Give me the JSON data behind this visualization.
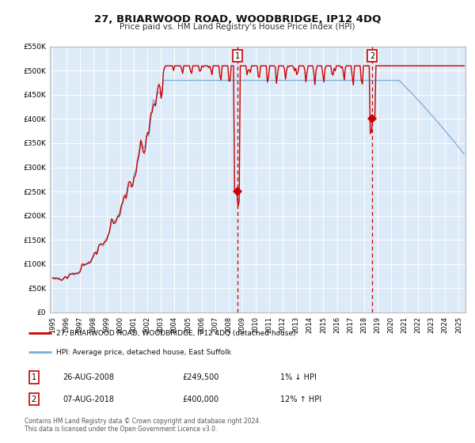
{
  "title": "27, BRIARWOOD ROAD, WOODBRIDGE, IP12 4DQ",
  "subtitle": "Price paid vs. HM Land Registry's House Price Index (HPI)",
  "ylim": [
    0,
    550000
  ],
  "xlim_start": 1994.8,
  "xlim_end": 2025.5,
  "yticks": [
    0,
    50000,
    100000,
    150000,
    200000,
    250000,
    300000,
    350000,
    400000,
    450000,
    500000,
    550000
  ],
  "ytick_labels": [
    "£0",
    "£50K",
    "£100K",
    "£150K",
    "£200K",
    "£250K",
    "£300K",
    "£350K",
    "£400K",
    "£450K",
    "£500K",
    "£550K"
  ],
  "xticks": [
    1995,
    1996,
    1997,
    1998,
    1999,
    2000,
    2001,
    2002,
    2003,
    2004,
    2005,
    2006,
    2007,
    2008,
    2009,
    2010,
    2011,
    2012,
    2013,
    2014,
    2015,
    2016,
    2017,
    2018,
    2019,
    2020,
    2021,
    2022,
    2023,
    2024,
    2025
  ],
  "hpi_line_color": "#7aadd4",
  "price_line_color": "#cc0000",
  "plot_bg_color": "#ddeaf7",
  "grid_color": "#ffffff",
  "sale1_x": 2008.65,
  "sale1_y": 249500,
  "sale2_x": 2018.6,
  "sale2_y": 400000,
  "legend_line1": "27, BRIARWOOD ROAD, WOODBRIDGE, IP12 4DQ (detached house)",
  "legend_line2": "HPI: Average price, detached house, East Suffolk",
  "sale1_date": "26-AUG-2008",
  "sale1_price": "£249,500",
  "sale1_hpi_txt": "1% ↓ HPI",
  "sale2_date": "07-AUG-2018",
  "sale2_price": "£400,000",
  "sale2_hpi_txt": "12% ↑ HPI",
  "footnote1": "Contains HM Land Registry data © Crown copyright and database right 2024.",
  "footnote2": "This data is licensed under the Open Government Licence v3.0."
}
